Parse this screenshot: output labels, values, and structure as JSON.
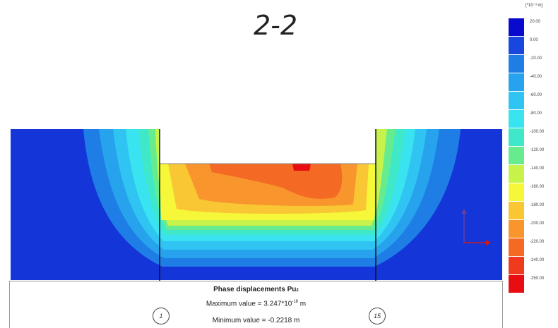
{
  "section_title": "2-2",
  "legend": {
    "unit": "[*10⁻³ m]",
    "entries": [
      {
        "label": "20.00",
        "color": "#0a0acf"
      },
      {
        "label": "0.00",
        "color": "#1847e0"
      },
      {
        "label": "-20.00",
        "color": "#1f7de6"
      },
      {
        "label": "-40.00",
        "color": "#27a2ec"
      },
      {
        "label": "-60.00",
        "color": "#2fc4f2"
      },
      {
        "label": "-80.00",
        "color": "#39e3ef"
      },
      {
        "label": "-100.00",
        "color": "#3fe8c8"
      },
      {
        "label": "-120.00",
        "color": "#66ec8e"
      },
      {
        "label": "-140.00",
        "color": "#c6f24a"
      },
      {
        "label": "-160.00",
        "color": "#f7f73a"
      },
      {
        "label": "-180.00",
        "color": "#f9c634"
      },
      {
        "label": "-200.00",
        "color": "#f8952c"
      },
      {
        "label": "-220.00",
        "color": "#f46a25"
      },
      {
        "label": "-240.00",
        "color": "#f03a1e"
      },
      {
        "label": "-250.00",
        "color": "#e80d12"
      }
    ]
  },
  "info": {
    "heading": "Phase displacements Pu",
    "heading_sub": "z",
    "max_prefix": "Maximum value = 3.247*10",
    "max_exp": "-18",
    "max_suffix": " m",
    "min_text": "Minimum value = -0.2218 m"
  },
  "markers": [
    "1",
    "15"
  ],
  "colors": {
    "background_field": "#1436d8"
  }
}
